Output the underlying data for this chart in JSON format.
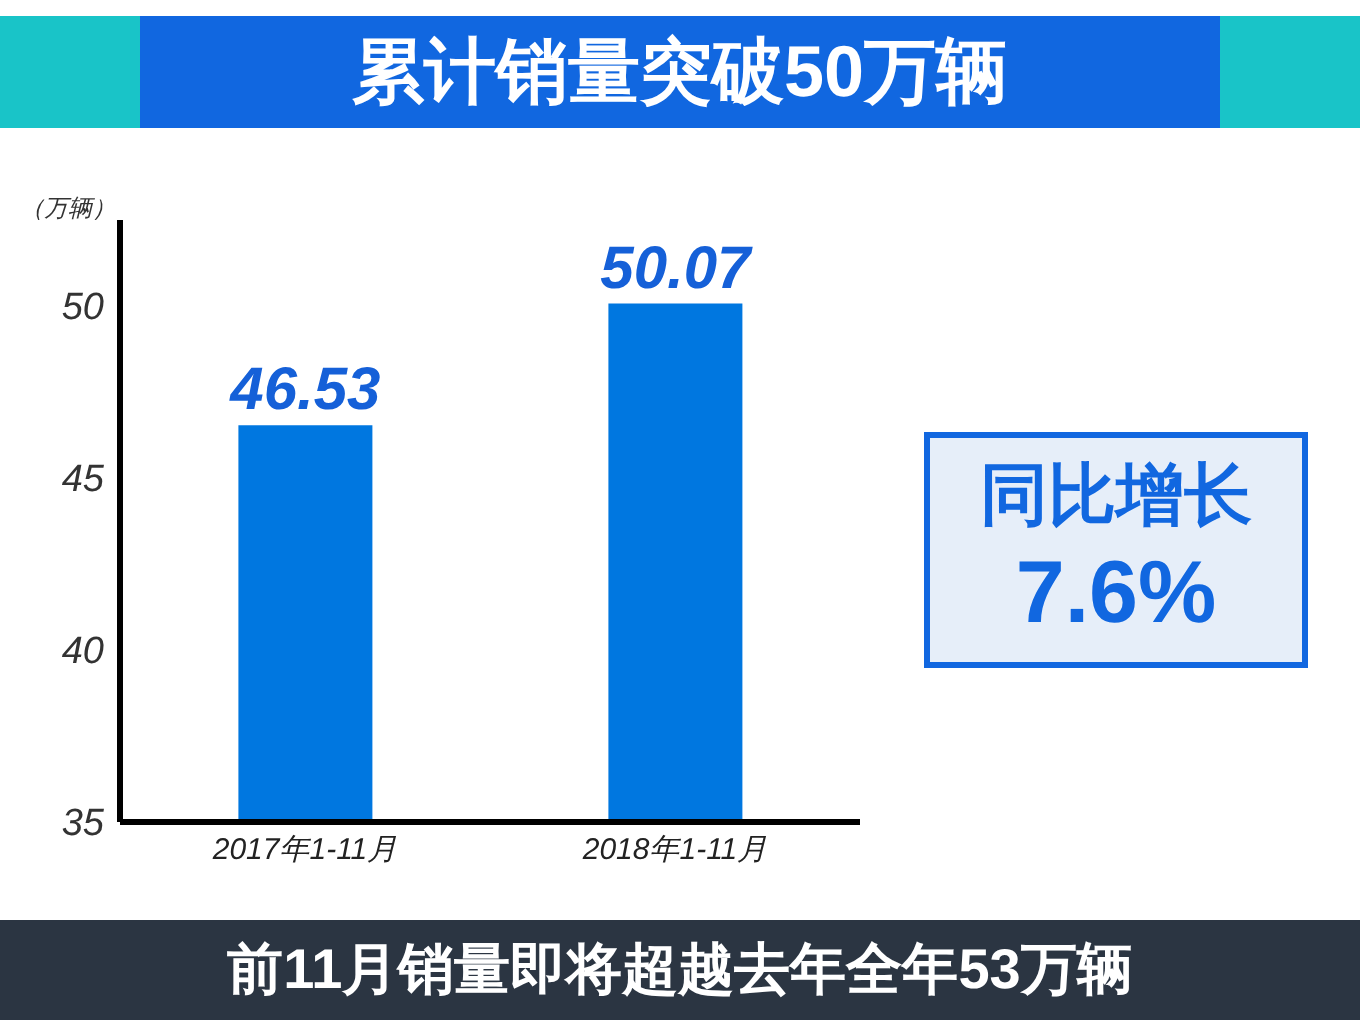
{
  "chart_data": {
    "type": "bar",
    "title": "累计销量突破50万辆",
    "ylabel": "（万辆）",
    "categories": [
      "2017年1-11月",
      "2018年1-11月"
    ],
    "values": [
      46.53,
      50.07
    ],
    "color": "#0077e0",
    "data_labels": true,
    "ylim": [
      35,
      52.5
    ],
    "yticks": [
      35,
      40,
      45,
      50
    ],
    "grid": false,
    "annotations": [
      "同比增长",
      "7.6%",
      "前11月销量即将超越去年全年53万辆"
    ]
  }
}
